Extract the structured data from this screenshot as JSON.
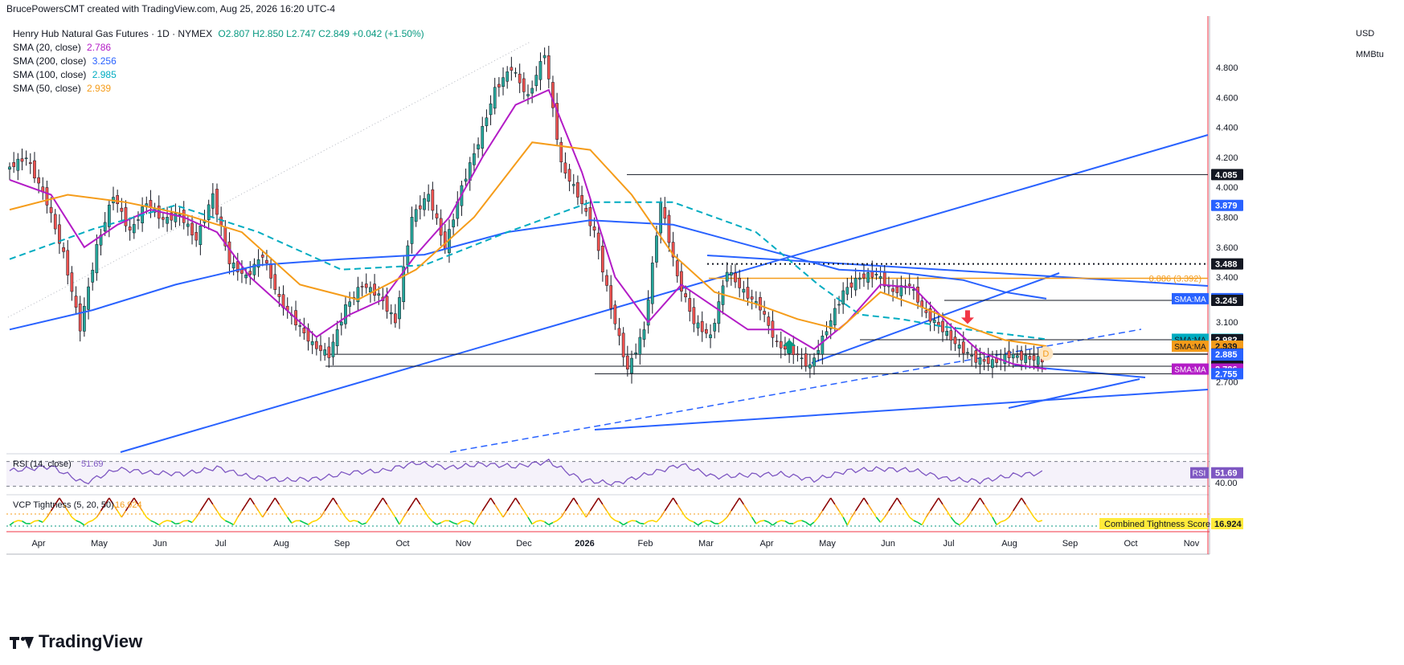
{
  "header": {
    "author_line": "BrucePowersCMT created with TradingView.com, Aug 25, 2026 16:20 UTC-4",
    "symbol": "Henry Hub Natural Gas Futures · 1D · NYMEX",
    "ohlc": "O2.807 H2.850 L2.747 C2.849 +0.042 (+1.50%)",
    "ohlc_color": "#089981"
  },
  "legend": [
    {
      "label": "SMA (20, close)",
      "value": "2.786",
      "color": "#b31cc6"
    },
    {
      "label": "SMA (200, close)",
      "value": "3.256",
      "color": "#2962ff"
    },
    {
      "label": "SMA (100, close)",
      "value": "2.985",
      "color": "#00acc1"
    },
    {
      "label": "SMA (50, close)",
      "value": "2.939",
      "color": "#f59c1a"
    }
  ],
  "axis": {
    "currency": "USD",
    "unit": "MMBtu"
  },
  "brand": "TradingView",
  "chart_data": {
    "type": "candlestick",
    "price_axis": {
      "ticks": [
        "4.800",
        "4.600",
        "4.400",
        "4.200",
        "4.000",
        "3.800",
        "3.600",
        "3.400",
        "3.100",
        "2.700"
      ],
      "tick_values": [
        4.8,
        4.6,
        4.4,
        4.2,
        4.0,
        3.8,
        3.6,
        3.4,
        3.1,
        2.7
      ],
      "ylim": [
        2.7,
        4.9
      ]
    },
    "time_axis": {
      "labels": [
        "Apr",
        "May",
        "Jun",
        "Jul",
        "Aug",
        "Sep",
        "Oct",
        "Nov",
        "Dec",
        "2026",
        "Feb",
        "Mar",
        "Apr",
        "May",
        "Jun",
        "Jul",
        "Aug",
        "Sep",
        "Oct",
        "Nov"
      ]
    },
    "price_path": [
      [
        0,
        4.12
      ],
      [
        5,
        4.2
      ],
      [
        10,
        3.9
      ],
      [
        14,
        3.55
      ],
      [
        18,
        3.06
      ],
      [
        22,
        3.6
      ],
      [
        26,
        3.95
      ],
      [
        30,
        3.7
      ],
      [
        34,
        3.9
      ],
      [
        38,
        3.78
      ],
      [
        42,
        3.82
      ],
      [
        46,
        3.65
      ],
      [
        50,
        3.95
      ],
      [
        54,
        3.5
      ],
      [
        58,
        3.4
      ],
      [
        62,
        3.55
      ],
      [
        66,
        3.25
      ],
      [
        70,
        3.1
      ],
      [
        74,
        2.95
      ],
      [
        78,
        2.88
      ],
      [
        82,
        3.2
      ],
      [
        86,
        3.35
      ],
      [
        90,
        3.28
      ],
      [
        94,
        3.1
      ],
      [
        98,
        3.8
      ],
      [
        102,
        3.95
      ],
      [
        106,
        3.6
      ],
      [
        110,
        4.0
      ],
      [
        114,
        4.3
      ],
      [
        118,
        4.65
      ],
      [
        122,
        4.8
      ],
      [
        126,
        4.6
      ],
      [
        130,
        4.9
      ],
      [
        134,
        4.15
      ],
      [
        138,
        3.95
      ],
      [
        142,
        3.7
      ],
      [
        146,
        3.2
      ],
      [
        150,
        2.78
      ],
      [
        154,
        3.05
      ],
      [
        158,
        3.9
      ],
      [
        162,
        3.4
      ],
      [
        166,
        3.1
      ],
      [
        170,
        3.0
      ],
      [
        174,
        3.45
      ],
      [
        178,
        3.3
      ],
      [
        182,
        3.2
      ],
      [
        186,
        2.95
      ],
      [
        190,
        2.9
      ],
      [
        194,
        2.8
      ],
      [
        198,
        3.05
      ],
      [
        202,
        3.3
      ],
      [
        206,
        3.4
      ],
      [
        210,
        3.42
      ],
      [
        214,
        3.3
      ],
      [
        218,
        3.35
      ],
      [
        222,
        3.15
      ],
      [
        226,
        3.05
      ],
      [
        230,
        2.93
      ],
      [
        234,
        2.85
      ],
      [
        238,
        2.83
      ],
      [
        242,
        2.88
      ],
      [
        246,
        2.86
      ],
      [
        250,
        2.849
      ]
    ],
    "sma": [
      {
        "name": "SMA (20, close)",
        "color": "#b31cc6",
        "value": 2.786,
        "path": [
          [
            0,
            4.05
          ],
          [
            10,
            3.95
          ],
          [
            18,
            3.6
          ],
          [
            26,
            3.75
          ],
          [
            34,
            3.85
          ],
          [
            42,
            3.8
          ],
          [
            50,
            3.7
          ],
          [
            58,
            3.4
          ],
          [
            66,
            3.2
          ],
          [
            74,
            3.0
          ],
          [
            82,
            3.15
          ],
          [
            90,
            3.25
          ],
          [
            98,
            3.55
          ],
          [
            106,
            3.8
          ],
          [
            114,
            4.2
          ],
          [
            122,
            4.55
          ],
          [
            130,
            4.65
          ],
          [
            138,
            4.1
          ],
          [
            146,
            3.4
          ],
          [
            154,
            3.1
          ],
          [
            162,
            3.35
          ],
          [
            170,
            3.2
          ],
          [
            178,
            3.05
          ],
          [
            186,
            3.05
          ],
          [
            194,
            2.92
          ],
          [
            202,
            3.1
          ],
          [
            210,
            3.35
          ],
          [
            218,
            3.33
          ],
          [
            226,
            3.1
          ],
          [
            234,
            2.9
          ],
          [
            242,
            2.82
          ],
          [
            250,
            2.786
          ]
        ]
      },
      {
        "name": "SMA (200, close)",
        "color": "#2962ff",
        "value": 3.256,
        "path": [
          [
            0,
            3.05
          ],
          [
            20,
            3.18
          ],
          [
            40,
            3.35
          ],
          [
            60,
            3.48
          ],
          [
            80,
            3.52
          ],
          [
            100,
            3.55
          ],
          [
            120,
            3.7
          ],
          [
            140,
            3.78
          ],
          [
            160,
            3.75
          ],
          [
            180,
            3.6
          ],
          [
            200,
            3.45
          ],
          [
            215,
            3.43
          ],
          [
            230,
            3.38
          ],
          [
            240,
            3.3
          ],
          [
            250,
            3.256
          ]
        ]
      },
      {
        "name": "SMA (100, close)",
        "color": "#00acc1",
        "value": 2.985,
        "dashed": true,
        "path": [
          [
            0,
            3.52
          ],
          [
            20,
            3.72
          ],
          [
            40,
            3.88
          ],
          [
            60,
            3.7
          ],
          [
            80,
            3.45
          ],
          [
            100,
            3.48
          ],
          [
            120,
            3.7
          ],
          [
            140,
            3.9
          ],
          [
            160,
            3.9
          ],
          [
            180,
            3.7
          ],
          [
            195,
            3.35
          ],
          [
            205,
            3.15
          ],
          [
            215,
            3.12
          ],
          [
            225,
            3.07
          ],
          [
            240,
            3.02
          ],
          [
            250,
            2.985
          ]
        ]
      },
      {
        "name": "SMA (50, close)",
        "color": "#f59c1a",
        "value": 2.939,
        "path": [
          [
            0,
            3.85
          ],
          [
            14,
            3.95
          ],
          [
            28,
            3.9
          ],
          [
            42,
            3.82
          ],
          [
            56,
            3.7
          ],
          [
            70,
            3.35
          ],
          [
            84,
            3.25
          ],
          [
            98,
            3.45
          ],
          [
            112,
            3.8
          ],
          [
            126,
            4.3
          ],
          [
            140,
            4.25
          ],
          [
            150,
            3.95
          ],
          [
            160,
            3.55
          ],
          [
            170,
            3.3
          ],
          [
            180,
            3.22
          ],
          [
            190,
            3.12
          ],
          [
            200,
            3.05
          ],
          [
            210,
            3.3
          ],
          [
            220,
            3.2
          ],
          [
            230,
            3.08
          ],
          [
            240,
            2.98
          ],
          [
            250,
            2.939
          ]
        ]
      }
    ],
    "levels": [
      {
        "value": 4.085,
        "label": "4.085",
        "style": "solid"
      },
      {
        "value": 3.488,
        "label": "3.488",
        "style": "dotted"
      },
      {
        "value": 3.392,
        "label": "0.886 (3.392)",
        "style": "fib",
        "color": "#f59c1a"
      },
      {
        "value": 3.245,
        "label": "3.245",
        "style": "solid"
      },
      {
        "value": 2.982,
        "label": "2.982",
        "style": "solid"
      },
      {
        "value": 2.887,
        "label": "2.887",
        "style": "solid"
      },
      {
        "value": 2.885,
        "label": "2.885",
        "style": "solid"
      },
      {
        "value": 2.805,
        "label": "2.805",
        "style": "solid"
      },
      {
        "value": 2.755,
        "label": "2.755",
        "style": "solid"
      }
    ],
    "price_tags": [
      {
        "text": "4.085",
        "value": 4.085,
        "bg": "#131722",
        "fg": "#ffffff"
      },
      {
        "text": "3.879",
        "value": 3.879,
        "bg": "#2962ff",
        "fg": "#ffffff"
      },
      {
        "text": "3.488",
        "value": 3.488,
        "bg": "#131722",
        "fg": "#ffffff"
      },
      {
        "text": "3.256",
        "value": 3.256,
        "bg": "#2962ff",
        "fg": "#ffffff",
        "prefix": "SMA:MA"
      },
      {
        "text": "3.245",
        "value": 3.245,
        "bg": "#131722",
        "fg": "#ffffff"
      },
      {
        "text": "2.985",
        "value": 2.985,
        "bg": "#00acc1",
        "fg": "#131722",
        "prefix": "SMA:MA"
      },
      {
        "text": "2.982",
        "value": 2.982,
        "bg": "#131722",
        "fg": "#ffffff"
      },
      {
        "text": "2.939",
        "value": 2.939,
        "bg": "#f59c1a",
        "fg": "#131722",
        "prefix": "SMA:MA"
      },
      {
        "text": "2.887",
        "value": 2.887,
        "bg": "#131722",
        "fg": "#ffffff"
      },
      {
        "text": "2.885",
        "value": 2.885,
        "bg": "#2962ff",
        "fg": "#ffffff"
      },
      {
        "text": "2.819",
        "value": 2.819,
        "bg": "#2962ff",
        "fg": "#ffffff"
      },
      {
        "text": "2.805",
        "value": 2.805,
        "bg": "#131722",
        "fg": "#ffffff"
      },
      {
        "text": "2.786",
        "value": 2.786,
        "bg": "#b31cc6",
        "fg": "#ffffff",
        "prefix": "SMA:MA"
      },
      {
        "text": "2.755",
        "value": 2.755,
        "bg": "#2962ff",
        "fg": "#ffffff"
      }
    ],
    "annotations": [
      {
        "type": "arrow-up",
        "color": "#089981",
        "x": 188,
        "value": 2.94
      },
      {
        "type": "arrow-down",
        "color": "#f23645",
        "x": 231,
        "value": 3.13
      },
      {
        "type": "label",
        "text": "D",
        "color": "#f59c1a",
        "x": 246,
        "value": 2.89
      }
    ],
    "rsi": {
      "label": "RSI (14, close)",
      "value": "51.69",
      "color": "#7e57c2",
      "tag": "RSI",
      "level_label": "40.00",
      "ylim": [
        20,
        80
      ],
      "path": [
        [
          0,
          55
        ],
        [
          10,
          62
        ],
        [
          18,
          35
        ],
        [
          26,
          58
        ],
        [
          34,
          52
        ],
        [
          42,
          50
        ],
        [
          50,
          60
        ],
        [
          58,
          45
        ],
        [
          66,
          40
        ],
        [
          74,
          42
        ],
        [
          82,
          52
        ],
        [
          90,
          55
        ],
        [
          98,
          68
        ],
        [
          106,
          60
        ],
        [
          114,
          66
        ],
        [
          122,
          62
        ],
        [
          130,
          70
        ],
        [
          138,
          40
        ],
        [
          146,
          34
        ],
        [
          154,
          50
        ],
        [
          162,
          65
        ],
        [
          170,
          45
        ],
        [
          178,
          48
        ],
        [
          186,
          50
        ],
        [
          194,
          40
        ],
        [
          202,
          55
        ],
        [
          210,
          58
        ],
        [
          218,
          56
        ],
        [
          226,
          42
        ],
        [
          234,
          38
        ],
        [
          242,
          48
        ],
        [
          250,
          51.69
        ]
      ]
    },
    "vcp": {
      "label": "VCP Tightness (5, 20, 50)",
      "value": "16.924",
      "score_label": "Combined Tightness Score",
      "spikes": [
        12,
        24,
        30,
        48,
        58,
        64,
        78,
        90,
        98,
        116,
        122,
        136,
        142,
        160,
        176,
        198,
        206,
        214,
        224,
        234,
        244
      ]
    }
  }
}
